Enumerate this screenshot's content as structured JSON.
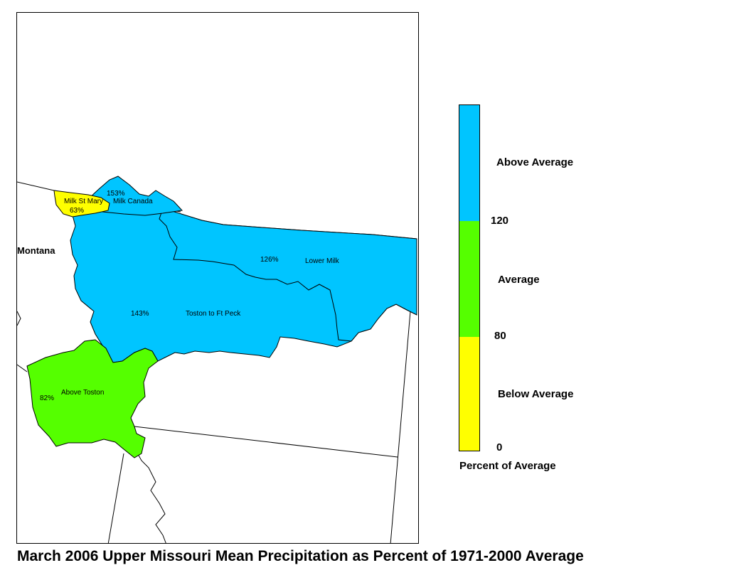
{
  "title": "March 2006 Upper Missouri Mean Precipitation as Percent of 1971-2000 Average",
  "map": {
    "state_label": "Montana",
    "basins": [
      {
        "name": "Milk St Mary",
        "percent": "63%",
        "category": "Below Average",
        "color": "#FFFF00"
      },
      {
        "name": "Milk Canada",
        "percent": "153%",
        "category": "Above Average",
        "color": "#00C5FF"
      },
      {
        "name": "Lower Milk",
        "percent": "126%",
        "category": "Above Average",
        "color": "#00C5FF"
      },
      {
        "name": "Toston to Ft Peck",
        "percent": "143%",
        "category": "Above Average",
        "color": "#00C5FF"
      },
      {
        "name": "Above Toston",
        "percent": "82%",
        "category": "Average",
        "color": "#55FF00"
      }
    ]
  },
  "legend": {
    "title": "Percent of Average",
    "categories": [
      {
        "label": "Above Average",
        "color": "#00C5FF",
        "range": [
          120,
          null
        ]
      },
      {
        "label": "Average",
        "color": "#55FF00",
        "range": [
          80,
          120
        ]
      },
      {
        "label": "Below Average",
        "color": "#FFFF00",
        "range": [
          0,
          80
        ]
      }
    ],
    "breaks": [
      "120",
      "80",
      "0"
    ]
  }
}
